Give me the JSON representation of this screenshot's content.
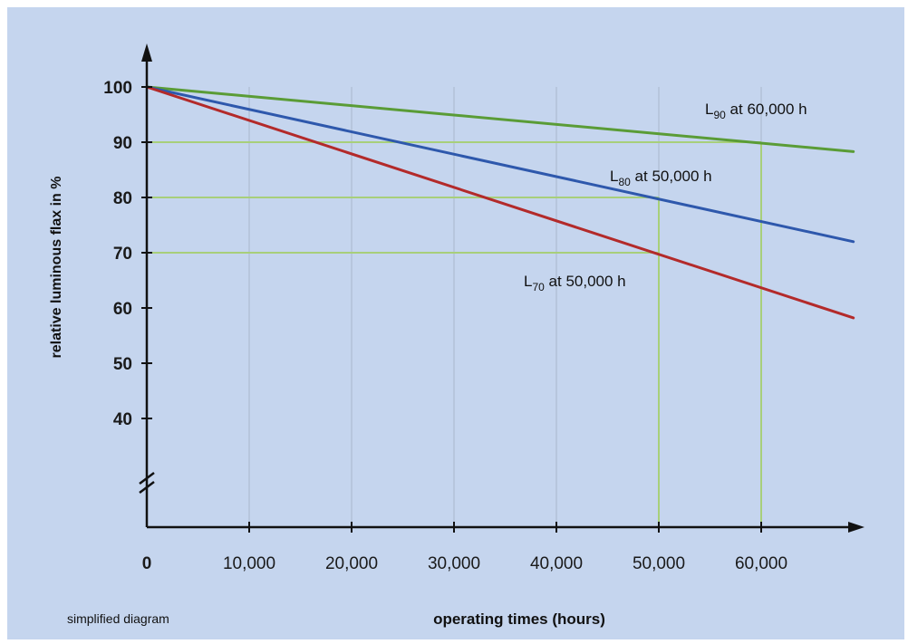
{
  "chart_data": {
    "type": "line",
    "xlabel": "operating times (hours)",
    "ylabel": "relative luminous flax in %",
    "note": "simplified diagram",
    "xlim": [
      0,
      69000
    ],
    "ylim": [
      40,
      100
    ],
    "x_ticks": [
      0,
      10000,
      20000,
      30000,
      40000,
      50000,
      60000
    ],
    "x_tick_labels": [
      "0",
      "10,000",
      "20,000",
      "30,000",
      "40,000",
      "50,000",
      "60,000"
    ],
    "y_ticks": [
      40,
      50,
      60,
      70,
      80,
      90,
      100
    ],
    "y_tick_labels": [
      "40",
      "50",
      "60",
      "70",
      "80",
      "90",
      "100"
    ],
    "axis_break": true,
    "vertical_gridlines": true,
    "series": [
      {
        "color": "#5a9c36",
        "x": [
          0,
          69000
        ],
        "y": [
          100,
          88.3
        ]
      },
      {
        "color": "#2e58ac",
        "x": [
          0,
          69000
        ],
        "y": [
          100,
          72
        ]
      },
      {
        "color": "#b32a2a",
        "x": [
          0,
          69000
        ],
        "y": [
          100,
          58.2
        ]
      }
    ],
    "reference_lines": {
      "color": "#a8cf7a",
      "segments": [
        {
          "y": 90,
          "x_end": 60000
        },
        {
          "y": 80,
          "x_end": 50000
        },
        {
          "y": 70,
          "x_end": 50000
        }
      ],
      "verticals": [
        50000,
        60000
      ]
    },
    "annotations": [
      {
        "main": "L",
        "sub": "90",
        "rest": " at 60,000 h",
        "x": 60000,
        "y": 90
      },
      {
        "main": "L",
        "sub": "80",
        "rest": " at 50,000 h",
        "x": 50000,
        "y": 80
      },
      {
        "main": "L",
        "sub": "70",
        "rest": " at 50,000 h",
        "x": 50000,
        "y": 70
      }
    ]
  }
}
